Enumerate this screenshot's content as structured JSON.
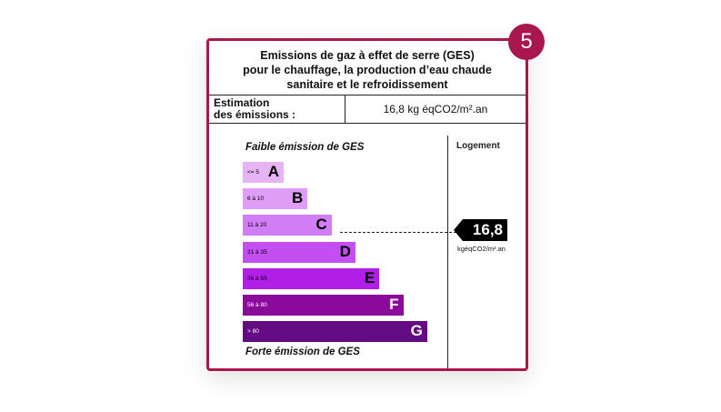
{
  "badge": {
    "number": "5"
  },
  "title": {
    "line1": "Emissions de gaz à effet de serre (GES)",
    "line2": "pour le chauffage, la production d’eau chaude",
    "line3": "sanitaire et le refroidissement"
  },
  "estimation": {
    "label_line1": "Estimation",
    "label_line2": "des émissions :",
    "value": "16,8 kg éqCO2/m².an"
  },
  "scale": {
    "top_label": "Faible émission de GES",
    "bottom_label": "Forte émission de GES",
    "column_header": "Logement",
    "classes": [
      {
        "letter": "A",
        "range": "<= 5",
        "color": "#e6b3f5"
      },
      {
        "letter": "B",
        "range": "6 à 10",
        "color": "#df9df7"
      },
      {
        "letter": "C",
        "range": "11 à 20",
        "color": "#d17df5"
      },
      {
        "letter": "D",
        "range": "21 à 35",
        "color": "#c34ff3"
      },
      {
        "letter": "E",
        "range": "36 à 55",
        "color": "#b11ee8"
      },
      {
        "letter": "F",
        "range": "56 à 80",
        "color": "#8a0a9a"
      },
      {
        "letter": "G",
        "range": "> 80",
        "color": "#620b83"
      }
    ]
  },
  "result": {
    "value": "16,8",
    "unit": "kgéqCO2/m².an",
    "class": "C"
  },
  "colors": {
    "accent": "#a8174e"
  }
}
